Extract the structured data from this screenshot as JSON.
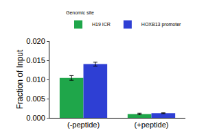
{
  "chart_data": {
    "type": "bar",
    "y_label": "Fraction of Input",
    "legend_title": "Genomic site",
    "categories": [
      "(-peptide)",
      "(+peptide)"
    ],
    "series": [
      {
        "name": "H19 ICR",
        "color": "#1fa64a",
        "values": [
          0.0104,
          0.001
        ],
        "errors": [
          0.0006,
          0.0002
        ]
      },
      {
        "name": "HOXB13 promoter",
        "color": "#2e3fd4",
        "values": [
          0.014,
          0.0012
        ],
        "errors": [
          0.0005,
          0.0001
        ]
      }
    ],
    "ylim": [
      0,
      0.02
    ],
    "yticks": [
      {
        "value": 0,
        "label": "0.000"
      },
      {
        "value": 0.005,
        "label": "0.005"
      },
      {
        "value": 0.01,
        "label": "0.010"
      },
      {
        "value": 0.015,
        "label": "0.015"
      },
      {
        "value": 0.02,
        "label": "0.020"
      }
    ],
    "grid": false,
    "legend": "top right"
  }
}
